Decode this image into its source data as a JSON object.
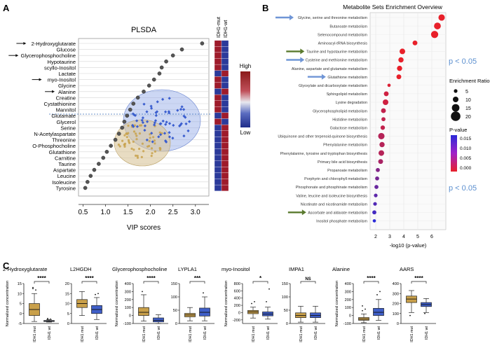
{
  "panel_labels": {
    "a": "A",
    "b": "B",
    "c": "C"
  },
  "colors": {
    "mut": "#c9a04a",
    "wt": "#3f5fc9",
    "dot": "#555555",
    "arrow_black": "#111111",
    "arrow_blue": "#6f95d6",
    "arrow_green": "#5a7a2e",
    "pvalue_note": "#5b8fcf"
  },
  "panel_a": {
    "title": "PLSDA",
    "xlabel": "VIP scores",
    "col_labels": [
      "IDH1-mut",
      "IDH1-wt"
    ],
    "scale_high": "High",
    "scale_low": "Low",
    "arrowed": [
      "2-Hydroxyglutarate",
      "Glycerophosphocholine",
      "myo-Inositol",
      "Alanine"
    ]
  },
  "panel_b": {
    "title": "Metabolite Sets Enrichment Overview",
    "xlabel": "-log10 (p-value)",
    "size_legend_title": "Enrichment Ratio",
    "size_legend_values": [
      "5",
      "10",
      "15",
      "20"
    ],
    "color_legend_title": "P-value",
    "color_legend_ticks": [
      "0.015",
      "0.010",
      "0.005",
      "0.000"
    ],
    "pnote_top": "p < 0.05",
    "pnote_bottom": "p < 0.05",
    "blue_arrows": [
      "Glycine, serine and threonine metabolism",
      "Cysteine and methionine metabolism",
      "Glutathione metabolism"
    ],
    "green_arrows": [
      "Taurine and hypotaurine metabolism",
      "Ascorbate and aldarate metabolism"
    ]
  },
  "chart_data": [
    {
      "type": "scatter",
      "title": "PLSDA",
      "xlabel": "VIP scores",
      "xlim": [
        0.4,
        3.3
      ],
      "xticks": [
        0.5,
        1.0,
        1.5,
        2.0,
        2.5,
        3.0
      ],
      "categories": [
        "2-Hydroxyglutarate",
        "Glucose",
        "Glycerophosphocholine",
        "Hypotaurine",
        "scyllo-Inositol",
        "Lactate",
        "myo-Inositol",
        "Glycine",
        "Alanine",
        "Creatine",
        "Cystathionine",
        "Mannitol",
        "Glutamate",
        "Glycerol",
        "Serine",
        "N-Acetylaspartate",
        "Threonine",
        "O-Phosphocholine",
        "Glutathione",
        "Carnitine",
        "Taurine",
        "Aspartate",
        "Leucine",
        "Isoleucine",
        "Tyrosine"
      ],
      "values": [
        3.15,
        2.7,
        2.5,
        2.35,
        2.25,
        2.2,
        2.08,
        1.97,
        1.85,
        1.72,
        1.62,
        1.55,
        1.48,
        1.42,
        1.37,
        1.3,
        1.22,
        1.12,
        1.03,
        0.95,
        0.85,
        0.75,
        0.67,
        0.6,
        0.55
      ],
      "heatmap_high_in_mut": [
        true,
        true,
        true,
        true,
        true,
        false,
        true,
        true,
        false,
        true,
        true,
        true,
        false,
        true,
        false,
        false,
        false,
        false,
        false,
        false,
        false,
        false,
        false,
        false,
        false
      ]
    },
    {
      "type": "scatter",
      "title": "Metabolite Sets Enrichment Overview",
      "xlabel": "-log10 (p-value)",
      "xlim": [
        1.6,
        7.0
      ],
      "xticks": [
        2,
        3,
        4,
        5,
        6
      ],
      "categories": [
        "Glycine, serine and threonine metabolism",
        "Butanoate metabolism",
        "Selenocompound metabolism",
        "Aminoacyl-tRNA biosynthesis",
        "Taurine and hypotaurine metabolism",
        "Cysteine and methionine metabolism",
        "Alanine, aspartate and glutamate metabolism",
        "Glutathione metabolism",
        "Glyoxylate and dicarboxylate metabolism",
        "Sphingolipid metabolism",
        "Lysine degradation",
        "Glycerophospholipid metabolism",
        "Histidine metabolism",
        "Galactose metabolism",
        "Ubiquinone and other terpenoid-quinone biosynthesis",
        "Phenylalanine metabolism",
        "Phenylalanine, tyrosine and tryptophan biosynthesis",
        "Primary bile acid biosynthesis",
        "Propanoate metabolism",
        "Porphyrin and chlorophyll metabolism",
        "Phosphonate and phosphinate metabolism",
        "Valine, leucine and isoleucine biosynthesis",
        "Nicotinate and nicotinamide metabolism",
        "Ascorbate and aldarate metabolism",
        "Inositol phosphate metabolism"
      ],
      "values": [
        6.7,
        6.4,
        6.2,
        4.8,
        3.9,
        3.8,
        3.7,
        3.65,
        2.95,
        2.75,
        2.7,
        2.55,
        2.55,
        2.5,
        2.4,
        2.45,
        2.4,
        2.35,
        2.15,
        2.1,
        2.05,
        2.0,
        1.95,
        1.9,
        1.9
      ],
      "enrichment_ratio": [
        12,
        13,
        14,
        8,
        10,
        9,
        9,
        8,
        4,
        8,
        10,
        8,
        6,
        7,
        12,
        9,
        10,
        8,
        6,
        6,
        6,
        5,
        5,
        6,
        4
      ],
      "p_value": [
        0.0,
        0.0,
        0.0,
        0.0,
        0.0,
        0.0,
        0.0,
        0.0,
        0.001,
        0.002,
        0.002,
        0.003,
        0.003,
        0.003,
        0.004,
        0.004,
        0.004,
        0.005,
        0.008,
        0.009,
        0.01,
        0.011,
        0.012,
        0.013,
        0.015
      ]
    },
    {
      "type": "box",
      "panels": [
        {
          "title": "2-Hydroxyglutarate",
          "ylabel": "Normalized concentration",
          "ylim": [
            -5,
            15
          ],
          "yticks": [
            -5,
            0,
            5,
            10,
            15
          ],
          "sig": "****",
          "series": [
            {
              "name": "IDH1 mut",
              "q": [
                -4,
                -1,
                2,
                5,
                10
              ],
              "outliers": [
                12.5,
                11.8,
                13
              ]
            },
            {
              "name": "IDH1 wt",
              "q": [
                -4.3,
                -4,
                -3.8,
                -3.5,
                -3
              ],
              "outliers": [
                -2.5,
                -2.8,
                -3
              ]
            }
          ]
        },
        {
          "title": "L2HGDH",
          "ylim": [
            0,
            20
          ],
          "yticks": [
            0,
            5,
            10,
            15,
            20
          ],
          "sig": "****",
          "series": [
            {
              "name": "IDH1 mut",
              "q": [
                4,
                8,
                10,
                12,
                16
              ],
              "outliers": []
            },
            {
              "name": "IDH1 wt",
              "q": [
                2,
                5,
                7,
                9,
                13
              ],
              "outliers": [
                14.5,
                15
              ]
            }
          ]
        },
        {
          "title": "Glycerophosphocholine",
          "ylabel": "Normalized concentration",
          "ylim": [
            -100,
            400
          ],
          "yticks": [
            -100,
            0,
            100,
            200,
            300,
            400
          ],
          "sig": "****",
          "series": [
            {
              "name": "IDH1 mut",
              "q": [
                -70,
                0,
                40,
                100,
                260
              ],
              "outliers": [
                300
              ]
            },
            {
              "name": "IDH1 wt",
              "q": [
                -100,
                -80,
                -60,
                -30,
                10
              ],
              "outliers": []
            }
          ]
        },
        {
          "title": "LYPLA1",
          "ylim": [
            0,
            150
          ],
          "yticks": [
            0,
            50,
            100,
            150
          ],
          "sig": "***",
          "series": [
            {
              "name": "IDH1 mut",
              "q": [
                10,
                25,
                32,
                38,
                60
              ],
              "outliers": []
            },
            {
              "name": "IDH1 wt",
              "q": [
                10,
                28,
                42,
                58,
                100
              ],
              "outliers": [
                115
              ]
            }
          ]
        },
        {
          "title": "myo-Inositol",
          "ylabel": "Normalized concentration",
          "ylim": [
            -300,
            800
          ],
          "yticks": [
            -200,
            0,
            200,
            400,
            600,
            800
          ],
          "sig": "*",
          "series": [
            {
              "name": "IDH1 mut",
              "q": [
                -150,
                -30,
                20,
                60,
                150
              ],
              "outliers": [
                250,
                300
              ]
            },
            {
              "name": "IDH1 wt",
              "q": [
                -180,
                -90,
                -40,
                20,
                150
              ],
              "outliers": [
                300,
                650
              ]
            }
          ]
        },
        {
          "title": "IMPA1",
          "ylim": [
            0,
            150
          ],
          "yticks": [
            0,
            50,
            100,
            150
          ],
          "sig": "NS",
          "series": [
            {
              "name": "IDH1 mut",
              "q": [
                5,
                22,
                30,
                40,
                65
              ],
              "outliers": []
            },
            {
              "name": "IDH1 wt",
              "q": [
                5,
                22,
                30,
                40,
                65
              ],
              "outliers": []
            }
          ]
        },
        {
          "title": "Alanine",
          "ylabel": "Normalized concentration",
          "ylim": [
            -100,
            400
          ],
          "yticks": [
            -100,
            0,
            100,
            200,
            300,
            400
          ],
          "sig": "****",
          "series": [
            {
              "name": "IDH1 mut",
              "q": [
                -90,
                -60,
                -45,
                -25,
                20
              ],
              "outliers": [
                60,
                80,
                120
              ]
            },
            {
              "name": "IDH1 wt",
              "q": [
                -60,
                0,
                40,
                90,
                200
              ],
              "outliers": [
                260,
                300
              ]
            }
          ]
        },
        {
          "title": "AARS",
          "ylim": [
            0,
            400
          ],
          "yticks": [
            0,
            100,
            200,
            300,
            400
          ],
          "sig": "****",
          "series": [
            {
              "name": "IDH1 mut",
              "q": [
                110,
                210,
                245,
                275,
                330
              ],
              "outliers": [
                80
              ]
            },
            {
              "name": "IDH1 wt",
              "q": [
                110,
                170,
                190,
                210,
                250
              ],
              "outliers": [
                100
              ]
            }
          ]
        }
      ]
    }
  ]
}
